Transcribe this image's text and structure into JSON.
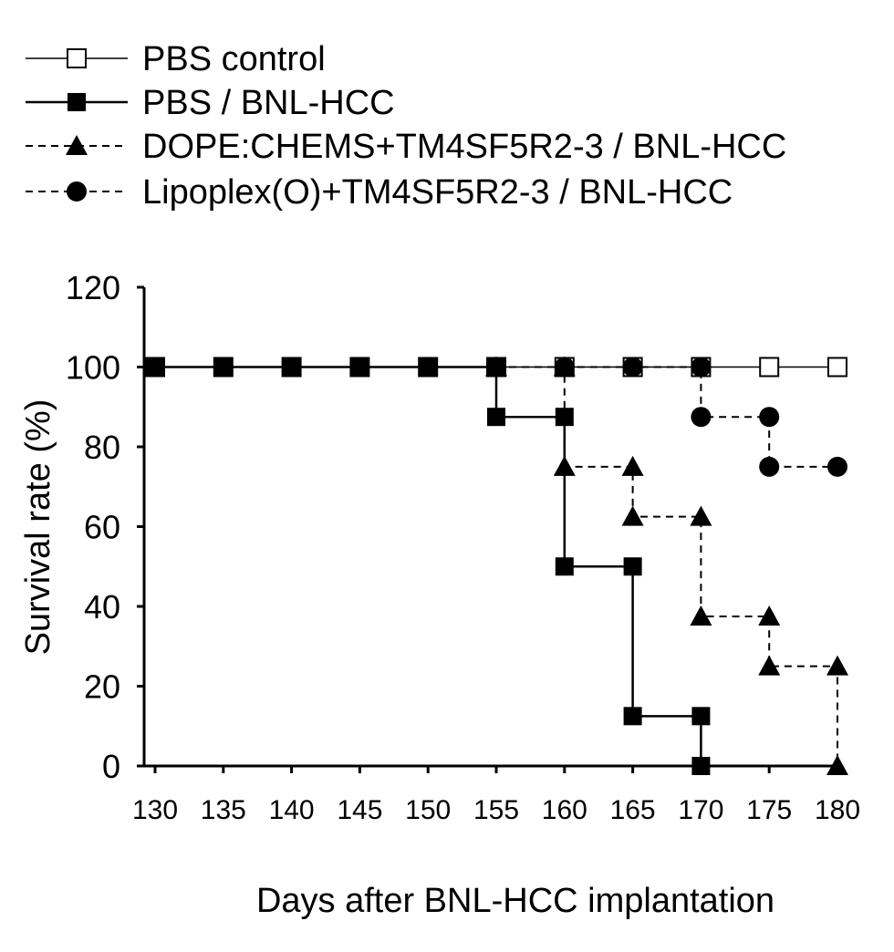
{
  "chart_data": {
    "type": "line",
    "step": true,
    "title": "",
    "xlabel": "Days after BNL-HCC implantation",
    "ylabel": "Survival rate (%)",
    "xlim": [
      130,
      180
    ],
    "ylim": [
      0,
      120
    ],
    "xticks": [
      "130",
      "135",
      "140",
      "145",
      "150",
      "155",
      "160",
      "165",
      "170",
      "175",
      "180"
    ],
    "yticks": [
      "0",
      "20",
      "40",
      "60",
      "80",
      "100",
      "120"
    ],
    "grid": false,
    "legend_position": "top-left",
    "series": [
      {
        "name": "PBS control",
        "line": "solid-thin",
        "marker": "open-square",
        "points": [
          [
            130,
            100
          ],
          [
            135,
            100
          ],
          [
            140,
            100
          ],
          [
            145,
            100
          ],
          [
            150,
            100
          ],
          [
            155,
            100
          ],
          [
            160,
            100
          ],
          [
            165,
            100
          ],
          [
            170,
            100
          ],
          [
            175,
            100
          ],
          [
            180,
            100
          ]
        ]
      },
      {
        "name": "PBS / BNL-HCC",
        "line": "solid",
        "marker": "filled-square",
        "points": [
          [
            130,
            100
          ],
          [
            135,
            100
          ],
          [
            140,
            100
          ],
          [
            145,
            100
          ],
          [
            150,
            100
          ],
          [
            155,
            100
          ],
          [
            155,
            87.5
          ],
          [
            160,
            87.5
          ],
          [
            160,
            50
          ],
          [
            165,
            50
          ],
          [
            165,
            12.5
          ],
          [
            170,
            12.5
          ],
          [
            170,
            0
          ]
        ]
      },
      {
        "name": "DOPE:CHEMS+TM4SF5R2-3 / BNL-HCC",
        "line": "dashed",
        "marker": "filled-triangle",
        "points": [
          [
            155,
            100
          ],
          [
            160,
            100
          ],
          [
            160,
            75
          ],
          [
            165,
            75
          ],
          [
            165,
            62.5
          ],
          [
            170,
            62.5
          ],
          [
            170,
            37.5
          ],
          [
            175,
            37.5
          ],
          [
            175,
            25
          ],
          [
            180,
            25
          ],
          [
            180,
            0
          ]
        ]
      },
      {
        "name": "Lipoplex(O)+TM4SF5R2-3 / BNL-HCC",
        "line": "dashed",
        "marker": "filled-circle",
        "points": [
          [
            160,
            100
          ],
          [
            165,
            100
          ],
          [
            170,
            100
          ],
          [
            170,
            87.5
          ],
          [
            175,
            87.5
          ],
          [
            175,
            75
          ],
          [
            180,
            75
          ]
        ]
      }
    ]
  }
}
